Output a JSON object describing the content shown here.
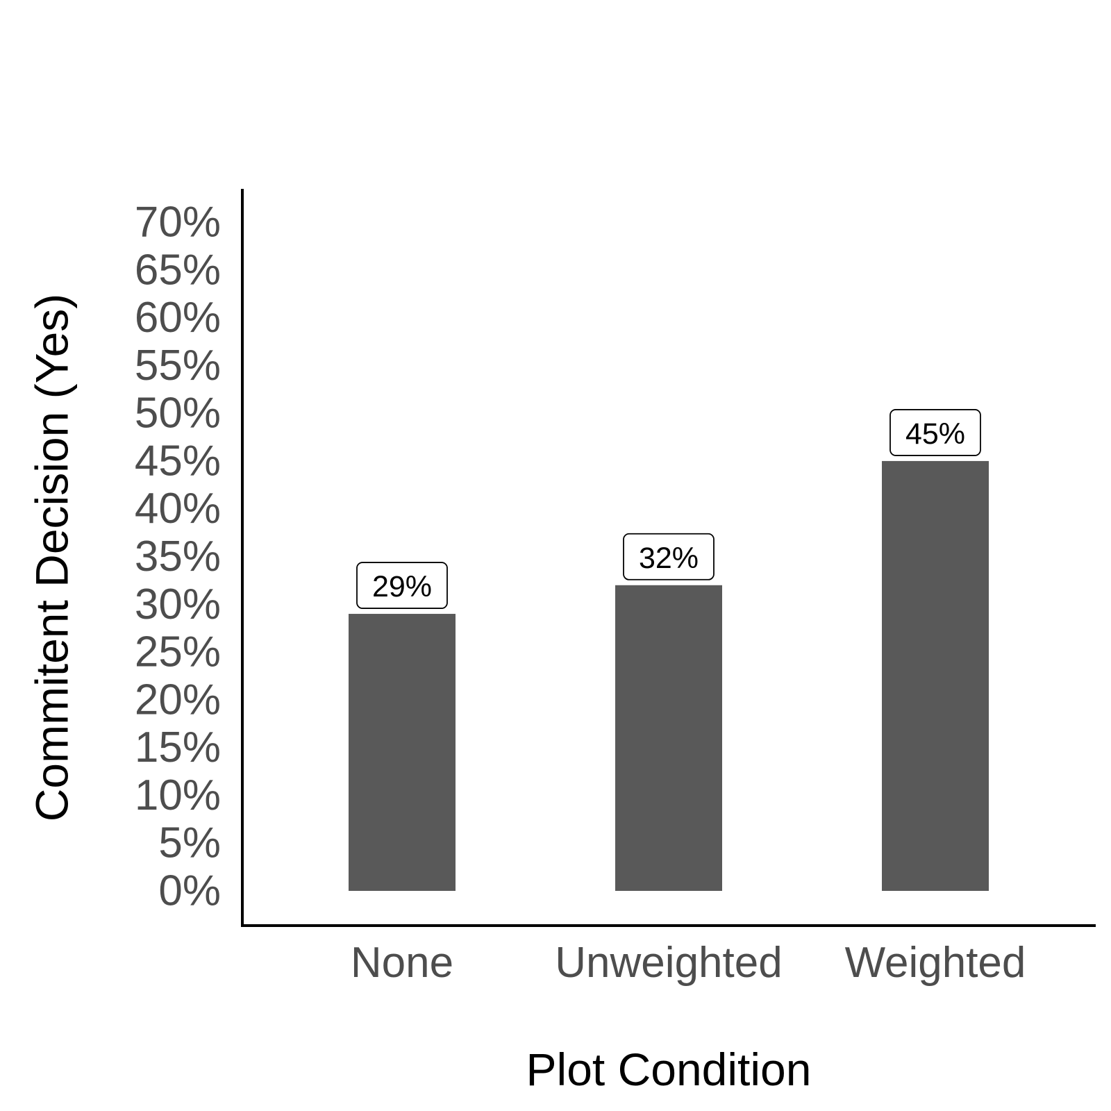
{
  "chart_data": {
    "type": "bar",
    "title": "",
    "xlabel": "Plot Condition",
    "ylabel": "Commitent Decision (Yes)",
    "categories": [
      "None",
      "Unweighted",
      "Weighted"
    ],
    "values": [
      29,
      32,
      45
    ],
    "value_labels": [
      "29%",
      "32%",
      "45%"
    ],
    "ylim": [
      0,
      70
    ],
    "yticks": [
      0,
      5,
      10,
      15,
      20,
      25,
      30,
      35,
      40,
      45,
      50,
      55,
      60,
      65,
      70
    ],
    "ytick_labels": [
      "0%",
      "5%",
      "10%",
      "15%",
      "20%",
      "25%",
      "30%",
      "35%",
      "40%",
      "45%",
      "50%",
      "55%",
      "60%",
      "65%",
      "70%"
    ],
    "grid": false,
    "legend": "none",
    "colors": {
      "bar": "#595959",
      "axis": "#000000",
      "tick_text": "#4d4d4d",
      "label_box_fill": "#ffffff",
      "label_box_stroke": "#000000"
    }
  }
}
